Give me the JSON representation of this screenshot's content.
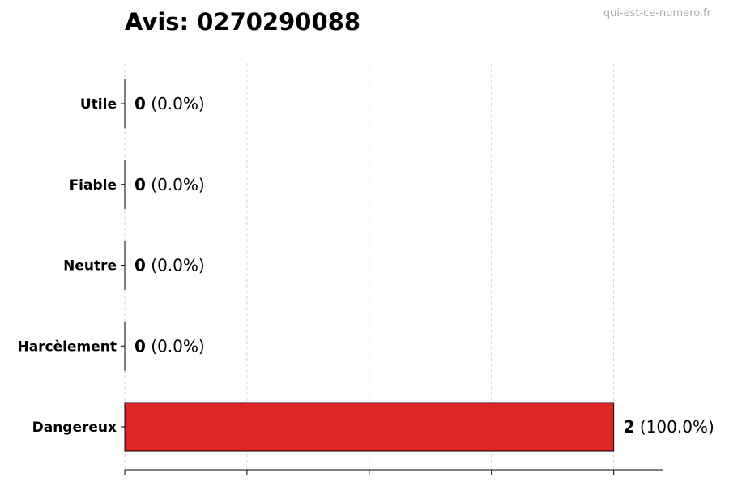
{
  "title": "Avis: 0270290088",
  "watermark": "qui-est-ce-numero.fr",
  "chart_data": {
    "type": "bar",
    "orientation": "horizontal",
    "title": "Avis: 0270290088",
    "categories": [
      "Utile",
      "Fiable",
      "Neutre",
      "Harcèlement",
      "Dangereux"
    ],
    "values": [
      0,
      0,
      0,
      0,
      2
    ],
    "value_labels": [
      {
        "count": "0",
        "pct": "(0.0%)"
      },
      {
        "count": "0",
        "pct": "(0.0%)"
      },
      {
        "count": "0",
        "pct": "(0.0%)"
      },
      {
        "count": "0",
        "pct": "(0.0%)"
      },
      {
        "count": "2",
        "pct": "(100.0%)"
      }
    ],
    "bar_color": "#dc2626",
    "xlim": [
      0,
      2.2
    ],
    "xticks": [
      0,
      0.5,
      1,
      1.5,
      2
    ],
    "grid": "x dashed",
    "xlabel": "",
    "ylabel": ""
  }
}
